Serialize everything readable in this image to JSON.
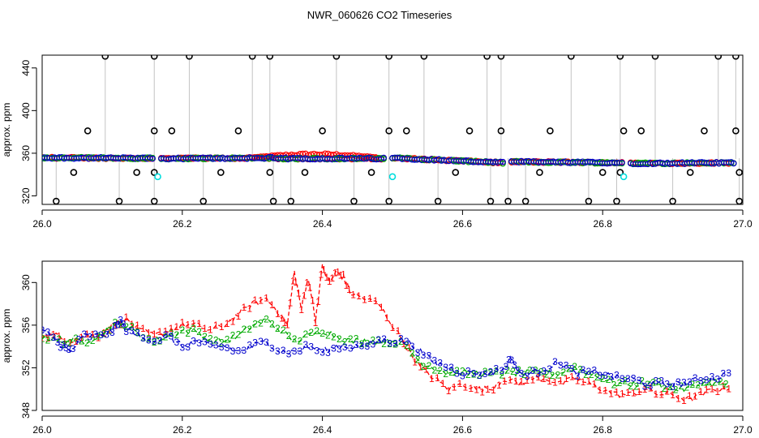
{
  "title": "NWR_060626  CO2 Timeseries",
  "colors": {
    "background": "#ffffff",
    "axis": "#000000",
    "series1": "#ff0000",
    "series2": "#00aa00",
    "series3": "#0000cc",
    "flagged": "#000000",
    "cyan": "#00dddd",
    "spikeLine": "#888888"
  },
  "chart_data": [
    {
      "type": "scatter",
      "ylabel": "approx. ppm",
      "xlabel": "",
      "xlim": [
        26.0,
        27.0
      ],
      "ylim": [
        312,
        452
      ],
      "xticks": [
        "26.0",
        "26.2",
        "26.4",
        "26.6",
        "26.8",
        "27.0"
      ],
      "yticks": [
        "320",
        "360",
        "400",
        "440"
      ],
      "segments": [
        {
          "x_start": 26.0,
          "x_end": 26.16,
          "y_start": 355.8,
          "y_end": 355.2
        },
        {
          "x_start": 26.17,
          "x_end": 26.33,
          "y_start": 355.0,
          "y_end": 355.6
        },
        {
          "x_start": 26.33,
          "x_end": 26.49,
          "y_start": 355.0,
          "y_end": 355.0
        },
        {
          "x_start": 26.5,
          "x_end": 26.66,
          "y_start": 355.6,
          "y_end": 351.0
        },
        {
          "x_start": 26.67,
          "x_end": 26.83,
          "y_start": 352.0,
          "y_end": 351.0
        },
        {
          "x_start": 26.84,
          "x_end": 26.99,
          "y_start": 350.5,
          "y_end": 351.0
        }
      ],
      "red_bump": {
        "x_start": 26.3,
        "x_end": 26.48,
        "y_peak": 360
      },
      "high_flags": [
        26.09,
        26.16,
        26.21,
        26.3,
        26.325,
        26.42,
        26.495,
        26.545,
        26.635,
        26.655,
        26.755,
        26.825,
        26.875,
        26.965,
        26.99
      ],
      "low_flags": [
        26.02,
        26.11,
        26.16,
        26.23,
        26.33,
        26.355,
        26.445,
        26.495,
        26.565,
        26.64,
        26.665,
        26.69,
        26.78,
        26.82,
        26.9,
        26.995
      ],
      "mid_flags": [
        {
          "x": 26.065,
          "y": 381
        },
        {
          "x": 26.16,
          "y": 381
        },
        {
          "x": 26.185,
          "y": 381
        },
        {
          "x": 26.28,
          "y": 381
        },
        {
          "x": 26.4,
          "y": 381
        },
        {
          "x": 26.495,
          "y": 381
        },
        {
          "x": 26.52,
          "y": 381
        },
        {
          "x": 26.61,
          "y": 381
        },
        {
          "x": 26.655,
          "y": 381
        },
        {
          "x": 26.725,
          "y": 381
        },
        {
          "x": 26.83,
          "y": 381
        },
        {
          "x": 26.855,
          "y": 381
        },
        {
          "x": 26.945,
          "y": 381
        },
        {
          "x": 26.99,
          "y": 381
        },
        {
          "x": 26.045,
          "y": 342
        },
        {
          "x": 26.135,
          "y": 342
        },
        {
          "x": 26.16,
          "y": 342
        },
        {
          "x": 26.255,
          "y": 342
        },
        {
          "x": 26.325,
          "y": 342
        },
        {
          "x": 26.375,
          "y": 342
        },
        {
          "x": 26.47,
          "y": 342
        },
        {
          "x": 26.59,
          "y": 342
        },
        {
          "x": 26.71,
          "y": 342
        },
        {
          "x": 26.8,
          "y": 342
        },
        {
          "x": 26.825,
          "y": 342
        },
        {
          "x": 26.925,
          "y": 342
        },
        {
          "x": 26.995,
          "y": 342
        }
      ],
      "cyan_points": [
        {
          "x": 26.165,
          "y": 338
        },
        {
          "x": 26.5,
          "y": 338
        },
        {
          "x": 26.83,
          "y": 338
        }
      ]
    },
    {
      "type": "line",
      "ylabel": "approx. ppm",
      "xlabel": "",
      "xlim": [
        26.0,
        27.0
      ],
      "ylim": [
        348,
        362
      ],
      "xticks": [
        "26.0",
        "26.2",
        "26.4",
        "26.6",
        "26.8",
        "27.0"
      ],
      "yticks": [
        "348",
        "352",
        "356",
        "360"
      ],
      "series": [
        {
          "label": "1",
          "x": [
            26.0,
            26.02,
            26.04,
            26.06,
            26.08,
            26.1,
            26.12,
            26.14,
            26.16,
            26.18,
            26.2,
            26.22,
            26.24,
            26.26,
            26.28,
            26.3,
            26.32,
            26.34,
            26.35,
            26.36,
            26.37,
            26.38,
            26.39,
            26.4,
            26.41,
            26.42,
            26.43,
            26.44,
            26.46,
            26.48,
            26.5,
            26.52,
            26.54,
            26.56,
            26.58,
            26.6,
            26.62,
            26.64,
            26.66,
            26.68,
            26.7,
            26.72,
            26.74,
            26.76,
            26.78,
            26.8,
            26.82,
            26.84,
            26.86,
            26.88,
            26.9,
            26.92,
            26.94,
            26.96,
            26.98
          ],
          "values": [
            355,
            355,
            354.5,
            355,
            355,
            356,
            356.5,
            355.5,
            355,
            355.5,
            356,
            356,
            355.5,
            356,
            357,
            358,
            358.5,
            357,
            356,
            361,
            357.5,
            360.5,
            356.5,
            361.5,
            360,
            361,
            360.5,
            359,
            358.5,
            358,
            356,
            354,
            352,
            351,
            350,
            350.5,
            350,
            350,
            351,
            350.5,
            351,
            351,
            350.5,
            351,
            350.5,
            350,
            349.5,
            349.5,
            350,
            349.5,
            349.5,
            349,
            349.5,
            350,
            350
          ]
        },
        {
          "label": "2",
          "x": [
            26.0,
            26.02,
            26.04,
            26.06,
            26.08,
            26.1,
            26.12,
            26.14,
            26.16,
            26.18,
            26.2,
            26.22,
            26.24,
            26.26,
            26.28,
            26.3,
            26.32,
            26.34,
            26.36,
            26.38,
            26.4,
            26.42,
            26.44,
            26.46,
            26.48,
            26.5,
            26.52,
            26.54,
            26.56,
            26.58,
            26.6,
            26.62,
            26.64,
            26.66,
            26.68,
            26.7,
            26.72,
            26.74,
            26.76,
            26.78,
            26.8,
            26.82,
            26.84,
            26.86,
            26.88,
            26.9,
            26.92,
            26.94,
            26.96,
            26.98
          ],
          "values": [
            355,
            354.5,
            354.5,
            354.5,
            355,
            356,
            356,
            355,
            354.5,
            355,
            355.5,
            355.5,
            354.5,
            354.5,
            355,
            356,
            356.5,
            355.5,
            354.5,
            355,
            355.5,
            355,
            354.5,
            354.5,
            354.5,
            354.5,
            354,
            352.5,
            352,
            351.5,
            351.5,
            351.5,
            351.5,
            351.5,
            351.5,
            351.5,
            351.5,
            351.5,
            352,
            351.5,
            351,
            350.5,
            350.5,
            350.5,
            350.5,
            350,
            350,
            350.5,
            350.5,
            350.5
          ]
        },
        {
          "label": "3",
          "x": [
            26.0,
            26.02,
            26.03,
            26.04,
            26.06,
            26.08,
            26.1,
            26.11,
            26.12,
            26.14,
            26.16,
            26.18,
            26.2,
            26.22,
            26.24,
            26.26,
            26.28,
            26.3,
            26.32,
            26.34,
            26.36,
            26.38,
            26.4,
            26.42,
            26.44,
            26.46,
            26.48,
            26.5,
            26.52,
            26.54,
            26.56,
            26.58,
            26.6,
            26.62,
            26.64,
            26.66,
            26.67,
            26.68,
            26.7,
            26.72,
            26.74,
            26.76,
            26.78,
            26.8,
            26.82,
            26.84,
            26.86,
            26.88,
            26.9,
            26.92,
            26.94,
            26.96,
            26.98
          ],
          "values": [
            355.5,
            354.5,
            354,
            353.5,
            355,
            355,
            355.5,
            356.5,
            355.5,
            355,
            354.5,
            355,
            354,
            354.5,
            354,
            354,
            353.5,
            354,
            354.5,
            353.5,
            353.5,
            354,
            353.5,
            354,
            354,
            354,
            354.5,
            354.5,
            354.5,
            353.5,
            352.5,
            352,
            351.5,
            351.5,
            351.5,
            352,
            353,
            351.5,
            351.5,
            352,
            352.5,
            351.5,
            351.5,
            351.5,
            351,
            351,
            350.5,
            350.5,
            350.5,
            350.5,
            351,
            351,
            351.5
          ]
        }
      ]
    }
  ]
}
